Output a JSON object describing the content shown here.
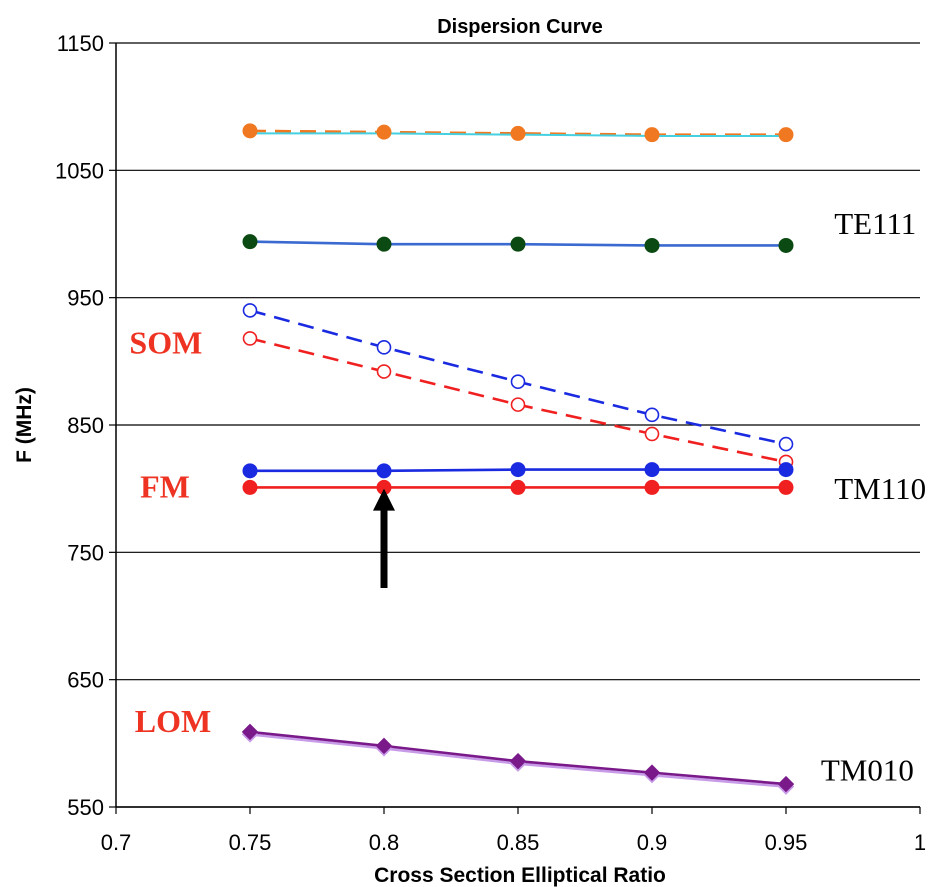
{
  "chart_data": {
    "type": "line",
    "title": "Dispersion Curve",
    "xlabel": "Cross Section Elliptical Ratio",
    "ylabel": "F (MHz)",
    "xlim": [
      0.7,
      1
    ],
    "ylim": [
      550,
      1150
    ],
    "x_ticks": [
      "0.7",
      "0.75",
      "0.8",
      "0.85",
      "0.9",
      "0.95",
      "1"
    ],
    "y_ticks": [
      "550",
      "650",
      "750",
      "850",
      "950",
      "1050",
      "1150"
    ],
    "grid": "horizontal",
    "x": [
      0.75,
      0.8,
      0.85,
      0.9,
      0.95
    ],
    "series": [
      {
        "values": [
          1081,
          1080,
          1079,
          1078,
          1078
        ],
        "color": "#f07820",
        "dash": "dashed",
        "marker": "circle-filled"
      },
      {
        "values": [
          1079,
          1079,
          1078,
          1077,
          1077
        ],
        "color": "#44d0e0",
        "dash": "solid",
        "marker": "none"
      },
      {
        "values": [
          994,
          992,
          992,
          991,
          991
        ],
        "color": "#0b4a12",
        "line_color": "#3a6ad0",
        "dash": "solid",
        "marker": "circle-filled"
      },
      {
        "values": [
          940,
          911,
          884,
          858,
          835
        ],
        "color": "#1a2ae0",
        "dash": "dashed",
        "marker": "circle-open"
      },
      {
        "values": [
          918,
          892,
          866,
          843,
          821
        ],
        "color": "#f02020",
        "dash": "dashed",
        "marker": "circle-open"
      },
      {
        "values": [
          814,
          814,
          815,
          815,
          815
        ],
        "color": "#1a2ae0",
        "dash": "solid",
        "marker": "circle-filled"
      },
      {
        "values": [
          801,
          801,
          801,
          801,
          801
        ],
        "color": "#f02020",
        "dash": "solid",
        "marker": "circle-filled"
      },
      {
        "values": [
          607,
          596,
          584,
          575,
          566
        ],
        "color": "#c79be8",
        "dash": "solid",
        "marker": "diamond"
      },
      {
        "values": [
          609,
          598,
          586,
          577,
          568
        ],
        "color": "#7a1a8a",
        "dash": "solid",
        "marker": "diamond"
      }
    ],
    "annotations": [
      {
        "text": "SOM",
        "style": "red",
        "x": 0.705,
        "y": 906
      },
      {
        "text": "FM",
        "style": "red",
        "x": 0.709,
        "y": 793
      },
      {
        "text": "LOM",
        "style": "red",
        "x": 0.707,
        "y": 609
      },
      {
        "text": "TE111",
        "style": "black",
        "x": 0.968,
        "y": 1000
      },
      {
        "text": "TM110",
        "style": "black",
        "x": 0.968,
        "y": 792
      },
      {
        "text": "TM010",
        "style": "black",
        "x": 0.963,
        "y": 571
      }
    ],
    "arrow": {
      "x": 0.8,
      "y_from": 722,
      "y_to": 800,
      "color": "#000000"
    }
  }
}
